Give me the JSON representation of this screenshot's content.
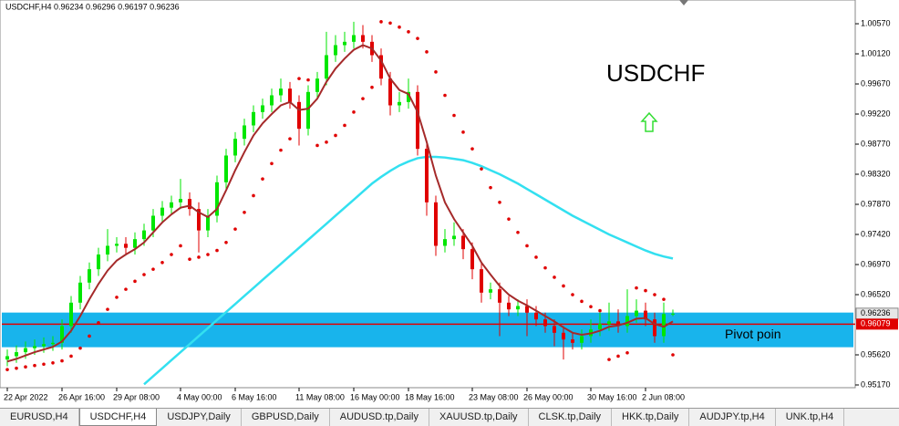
{
  "chart_data": {
    "type": "candlestick",
    "header": "USDCHF,H4  0.96234 0.96296 0.96197 0.96236",
    "symbol_label": "USDCHF",
    "pivot_text": "Pivot poin",
    "ylim": [
      0.95129,
      1.00925
    ],
    "yticks": [
      {
        "value": 1.0057,
        "label": "1.00570"
      },
      {
        "value": 1.0012,
        "label": "1.00120"
      },
      {
        "value": 0.9967,
        "label": "0.99670"
      },
      {
        "value": 0.9922,
        "label": "0.99220"
      },
      {
        "value": 0.9877,
        "label": "0.98770"
      },
      {
        "value": 0.9832,
        "label": "0.98320"
      },
      {
        "value": 0.9787,
        "label": "0.97870"
      },
      {
        "value": 0.9742,
        "label": "0.97420"
      },
      {
        "value": 0.9697,
        "label": "0.96970"
      },
      {
        "value": 0.9652,
        "label": "0.96520"
      },
      {
        "value": 0.9562,
        "label": "0.95620"
      },
      {
        "value": 0.9517,
        "label": "0.95170"
      }
    ],
    "categories": [
      "22 Apr 2022",
      null,
      null,
      null,
      null,
      null,
      "26 Apr 16:00",
      null,
      null,
      null,
      null,
      null,
      "29 Apr 08:00",
      null,
      null,
      null,
      null,
      null,
      null,
      "4 May 00:00",
      null,
      null,
      null,
      null,
      null,
      "6 May 16:00",
      null,
      null,
      null,
      null,
      null,
      null,
      "11 May 08:00",
      null,
      null,
      null,
      null,
      null,
      "16 May 00:00",
      null,
      null,
      null,
      null,
      null,
      "18 May 16:00",
      null,
      null,
      null,
      null,
      null,
      null,
      "23 May 08:00",
      null,
      null,
      null,
      null,
      null,
      "26 May 00:00",
      null,
      null,
      null,
      null,
      null,
      null,
      "30 May 16:00",
      null,
      null,
      null,
      null,
      null,
      "2 Jun 08:00",
      null,
      null,
      null
    ],
    "ohlc": [
      [
        0.9555,
        0.957,
        0.9545,
        0.956
      ],
      [
        0.956,
        0.9576,
        0.955,
        0.9566
      ],
      [
        0.9566,
        0.9582,
        0.9556,
        0.9572
      ],
      [
        0.9572,
        0.9585,
        0.9562,
        0.9575
      ],
      [
        0.9575,
        0.9588,
        0.9565,
        0.9578
      ],
      [
        0.9578,
        0.959,
        0.9568,
        0.958
      ],
      [
        0.958,
        0.9615,
        0.957,
        0.9605
      ],
      [
        0.9605,
        0.965,
        0.9595,
        0.964
      ],
      [
        0.964,
        0.968,
        0.963,
        0.967
      ],
      [
        0.967,
        0.97,
        0.966,
        0.969
      ],
      [
        0.969,
        0.9722,
        0.968,
        0.9712
      ],
      [
        0.9712,
        0.975,
        0.9702,
        0.9725
      ],
      [
        0.9725,
        0.9738,
        0.9715,
        0.9728
      ],
      [
        0.9728,
        0.9738,
        0.9712,
        0.9722
      ],
      [
        0.9722,
        0.9745,
        0.9712,
        0.9735
      ],
      [
        0.9735,
        0.9758,
        0.9725,
        0.9748
      ],
      [
        0.9748,
        0.978,
        0.9738,
        0.977
      ],
      [
        0.977,
        0.9792,
        0.976,
        0.9782
      ],
      [
        0.9782,
        0.98,
        0.9772,
        0.979
      ],
      [
        0.979,
        0.9825,
        0.978,
        0.9795
      ],
      [
        0.9795,
        0.9805,
        0.977,
        0.978
      ],
      [
        0.978,
        0.979,
        0.9715,
        0.9748
      ],
      [
        0.9748,
        0.978,
        0.9738,
        0.977
      ],
      [
        0.977,
        0.983,
        0.976,
        0.982
      ],
      [
        0.982,
        0.987,
        0.981,
        0.986
      ],
      [
        0.986,
        0.9895,
        0.985,
        0.9885
      ],
      [
        0.9885,
        0.9915,
        0.9875,
        0.9905
      ],
      [
        0.9905,
        0.9935,
        0.9895,
        0.9925
      ],
      [
        0.9925,
        0.9945,
        0.9915,
        0.9935
      ],
      [
        0.9935,
        0.996,
        0.9925,
        0.995
      ],
      [
        0.995,
        0.9975,
        0.994,
        0.996
      ],
      [
        0.996,
        0.997,
        0.993,
        0.994
      ],
      [
        0.994,
        0.995,
        0.9875,
        0.99
      ],
      [
        0.99,
        0.9965,
        0.989,
        0.9955
      ],
      [
        0.9955,
        0.9985,
        0.9945,
        0.9975
      ],
      [
        0.9975,
        1.0045,
        0.9965,
        1.001
      ],
      [
        1.001,
        1.004,
        1.0,
        1.0025
      ],
      [
        1.0025,
        1.0045,
        1.0015,
        1.003
      ],
      [
        1.003,
        1.006,
        1.002,
        1.004
      ],
      [
        1.004,
        1.0055,
        1.002,
        1.003
      ],
      [
        1.003,
        1.004,
        1.0,
        1.001
      ],
      [
        1.001,
        1.002,
        0.9965,
        0.9975
      ],
      [
        0.9975,
        0.9985,
        0.992,
        0.9935
      ],
      [
        0.9935,
        0.9955,
        0.9925,
        0.994
      ],
      [
        0.994,
        0.9975,
        0.993,
        0.9955
      ],
      [
        0.9955,
        0.9965,
        0.986,
        0.987
      ],
      [
        0.987,
        0.988,
        0.977,
        0.979
      ],
      [
        0.979,
        0.98,
        0.971,
        0.9725
      ],
      [
        0.9725,
        0.975,
        0.9715,
        0.9735
      ],
      [
        0.9735,
        0.976,
        0.9725,
        0.974
      ],
      [
        0.974,
        0.975,
        0.9705,
        0.972
      ],
      [
        0.972,
        0.973,
        0.9675,
        0.969
      ],
      [
        0.969,
        0.97,
        0.964,
        0.9655
      ],
      [
        0.9655,
        0.967,
        0.9645,
        0.966
      ],
      [
        0.966,
        0.967,
        0.959,
        0.964
      ],
      [
        0.964,
        0.965,
        0.962,
        0.963
      ],
      [
        0.963,
        0.9645,
        0.962,
        0.9635
      ],
      [
        0.9635,
        0.9645,
        0.959,
        0.9625
      ],
      [
        0.9625,
        0.9635,
        0.9605,
        0.9615
      ],
      [
        0.9615,
        0.9625,
        0.9595,
        0.9605
      ],
      [
        0.9605,
        0.9615,
        0.9575,
        0.9595
      ],
      [
        0.9595,
        0.9605,
        0.9555,
        0.9585
      ],
      [
        0.9585,
        0.9595,
        0.957,
        0.958
      ],
      [
        0.958,
        0.96,
        0.957,
        0.959
      ],
      [
        0.959,
        0.9615,
        0.958,
        0.96
      ],
      [
        0.96,
        0.9625,
        0.959,
        0.9608
      ],
      [
        0.9608,
        0.964,
        0.9598,
        0.9612
      ],
      [
        0.9612,
        0.963,
        0.9595,
        0.9605
      ],
      [
        0.9605,
        0.966,
        0.9595,
        0.962
      ],
      [
        0.962,
        0.9645,
        0.961,
        0.9628
      ],
      [
        0.9628,
        0.964,
        0.9605,
        0.9615
      ],
      [
        0.9615,
        0.9625,
        0.958,
        0.959
      ],
      [
        0.959,
        0.964,
        0.958,
        0.9623
      ],
      [
        0.96234,
        0.96296,
        0.96197,
        0.96236
      ]
    ],
    "bull_color": "#00e600",
    "bear_color": "#e00000",
    "fast_ma": {
      "color": "#a52a2a",
      "values": [
        0.9552,
        0.9556,
        0.9561,
        0.9566,
        0.957,
        0.9574,
        0.9582,
        0.9598,
        0.962,
        0.9645,
        0.9668,
        0.9688,
        0.9703,
        0.9712,
        0.972,
        0.973,
        0.9745,
        0.976,
        0.9772,
        0.9782,
        0.9785,
        0.9775,
        0.9768,
        0.978,
        0.9808,
        0.9838,
        0.9865,
        0.989,
        0.9908,
        0.9922,
        0.9935,
        0.994,
        0.9928,
        0.993,
        0.9945,
        0.997,
        0.999,
        1.0005,
        1.0018,
        1.0025,
        1.002,
        1.0002,
        0.9975,
        0.9958,
        0.9952,
        0.9925,
        0.988,
        0.983,
        0.979,
        0.9765,
        0.9745,
        0.9725,
        0.97,
        0.9682,
        0.9665,
        0.9652,
        0.9643,
        0.9636,
        0.9628,
        0.962,
        0.9612,
        0.9603,
        0.9595,
        0.9592,
        0.9594,
        0.9598,
        0.9604,
        0.9606,
        0.961,
        0.9616,
        0.9617,
        0.9608,
        0.9604,
        0.9612
      ]
    },
    "slow_ma": {
      "color": "#33e0f0",
      "values": [
        null,
        null,
        null,
        null,
        null,
        null,
        null,
        null,
        null,
        null,
        null,
        null,
        null,
        null,
        null,
        0.9518,
        0.953,
        0.9542,
        0.9554,
        0.9566,
        0.9578,
        0.959,
        0.9602,
        0.9614,
        0.9626,
        0.9638,
        0.965,
        0.9662,
        0.9674,
        0.9686,
        0.9698,
        0.971,
        0.9722,
        0.9734,
        0.9746,
        0.9758,
        0.977,
        0.9782,
        0.9794,
        0.9806,
        0.9818,
        0.9828,
        0.9837,
        0.9845,
        0.9851,
        0.9856,
        0.9858,
        0.9858,
        0.9857,
        0.9855,
        0.9853,
        0.9849,
        0.9844,
        0.9838,
        0.9832,
        0.9825,
        0.9818,
        0.981,
        0.9802,
        0.9794,
        0.9786,
        0.9778,
        0.977,
        0.9763,
        0.9756,
        0.9749,
        0.9742,
        0.9736,
        0.973,
        0.9724,
        0.9718,
        0.9713,
        0.9709,
        0.9706
      ]
    },
    "sar": {
      "color": "#e00000",
      "values": [
        0.954,
        0.9542,
        0.9544,
        0.9546,
        0.9548,
        0.955,
        0.9553,
        0.956,
        0.9572,
        0.959,
        0.961,
        0.963,
        0.9648,
        0.966,
        0.9672,
        0.9682,
        0.969,
        0.97,
        0.9712,
        0.9725,
        0.9705,
        0.9708,
        0.9712,
        0.9718,
        0.973,
        0.975,
        0.9775,
        0.98,
        0.9825,
        0.9848,
        0.9868,
        0.9885,
        0.9975,
        0.9973,
        0.9875,
        0.988,
        0.989,
        0.9905,
        0.9925,
        0.9945,
        0.9962,
        1.006,
        1.0058,
        1.0052,
        1.0045,
        1.0035,
        1.0015,
        0.9985,
        0.995,
        0.992,
        0.9895,
        0.987,
        0.984,
        0.9812,
        0.979,
        0.9765,
        0.9745,
        0.9725,
        0.9708,
        0.9692,
        0.9678,
        0.9665,
        0.9652,
        0.9642,
        0.9634,
        0.9628,
        0.9555,
        0.956,
        0.9565,
        0.9662,
        0.9658,
        0.9652,
        0.9645,
        0.9562
      ]
    },
    "band": {
      "color": "#18b4ec",
      "range": [
        0.95734,
        0.96252
      ]
    },
    "pivot": {
      "color": "#e00000",
      "value": 0.96079
    }
  },
  "tabs": [
    "EURUSD,H4",
    "USDCHF,H4",
    "USDJPY,Daily",
    "GBPUSD,Daily",
    "AUDUSD.tp,Daily",
    "XAUUSD.tp,Daily",
    "CLSK.tp,Daily",
    "HKK.tp,Daily",
    "AUDJPY.tp,H4",
    "UNK.tp,H4"
  ],
  "active_tab": 1
}
